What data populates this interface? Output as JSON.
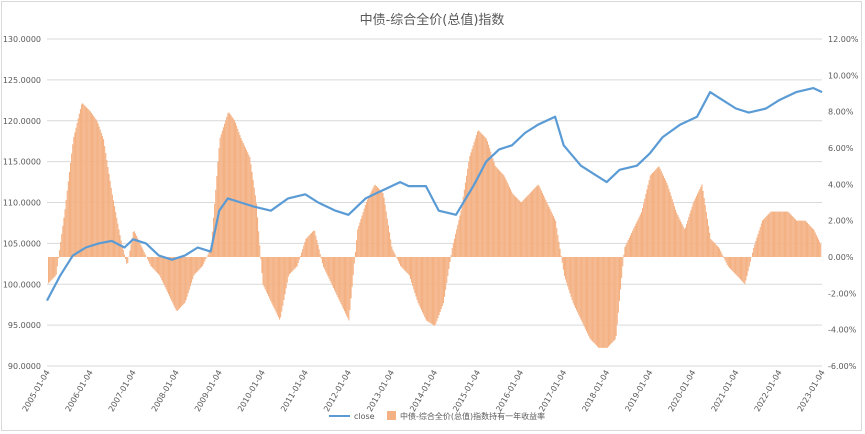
{
  "chart_data": {
    "type": "bar+line",
    "title": "中债-综合全价(总值)指数",
    "y_left": {
      "ticks": [
        "90.0000",
        "95.0000",
        "100.0000",
        "105.0000",
        "110.0000",
        "115.0000",
        "120.0000",
        "125.0000",
        "130.0000"
      ],
      "ylim": [
        90,
        130
      ]
    },
    "y_right": {
      "ticks": [
        "-6.00%",
        "-4.00%",
        "-2.00%",
        "0.00%",
        "2.00%",
        "4.00%",
        "6.00%",
        "8.00%",
        "10.00%",
        "12.00%"
      ],
      "ylim": [
        -6,
        12
      ]
    },
    "x_ticks": [
      "2005-01-04",
      "2006-01-04",
      "2007-01-04",
      "2008-01-04",
      "2009-01-04",
      "2010-01-04",
      "2011-01-04",
      "2012-01-04",
      "2013-01-04",
      "2014-01-04",
      "2015-01-04",
      "2016-01-04",
      "2017-01-04",
      "2018-01-04",
      "2019-01-04",
      "2020-01-04",
      "2021-01-04",
      "2022-01-04",
      "2023-01-04"
    ],
    "xlim": [
      2005.0,
      2023.0
    ],
    "grid": true,
    "legend_position": "bottom",
    "series": [
      {
        "name": "close",
        "axis": "left",
        "kind": "line",
        "color": "#5b9bd5",
        "x": [
          2005.0,
          2005.3,
          2005.6,
          2005.9,
          2006.2,
          2006.5,
          2006.8,
          2007.0,
          2007.3,
          2007.6,
          2007.9,
          2008.2,
          2008.5,
          2008.8,
          2009.0,
          2009.2,
          2009.5,
          2009.8,
          2010.2,
          2010.6,
          2011.0,
          2011.3,
          2011.7,
          2012.0,
          2012.4,
          2012.8,
          2013.2,
          2013.4,
          2013.8,
          2014.1,
          2014.5,
          2014.9,
          2015.2,
          2015.5,
          2015.8,
          2016.1,
          2016.4,
          2016.8,
          2017.0,
          2017.4,
          2017.7,
          2018.0,
          2018.3,
          2018.7,
          2019.0,
          2019.3,
          2019.7,
          2020.1,
          2020.4,
          2020.7,
          2021.0,
          2021.3,
          2021.7,
          2022.0,
          2022.4,
          2022.8,
          2023.0
        ],
        "y": [
          98.0,
          101.0,
          103.5,
          104.5,
          105.0,
          105.3,
          104.5,
          105.5,
          105.0,
          103.5,
          103.0,
          103.5,
          104.5,
          104.0,
          109.0,
          110.5,
          110.0,
          109.5,
          109.0,
          110.5,
          111.0,
          110.0,
          109.0,
          108.5,
          110.5,
          111.5,
          112.5,
          112.0,
          112.0,
          109.0,
          108.5,
          112.0,
          115.0,
          116.5,
          117.0,
          118.5,
          119.5,
          120.5,
          117.0,
          114.5,
          113.5,
          112.5,
          114.0,
          114.5,
          116.0,
          118.0,
          119.5,
          120.5,
          123.5,
          122.5,
          121.5,
          121.0,
          121.5,
          122.5,
          123.5,
          124.0,
          123.5
        ]
      },
      {
        "name": "中债-综合全价(总值)指数持有一年收益率",
        "axis": "right",
        "kind": "area",
        "color": "#f4b183",
        "x": [
          2005.0,
          2005.2,
          2005.4,
          2005.6,
          2005.8,
          2006.0,
          2006.15,
          2006.3,
          2006.5,
          2006.7,
          2006.85,
          2007.0,
          2007.2,
          2007.4,
          2007.6,
          2007.8,
          2008.0,
          2008.2,
          2008.4,
          2008.6,
          2008.8,
          2009.0,
          2009.2,
          2009.35,
          2009.5,
          2009.7,
          2009.85,
          2010.0,
          2010.2,
          2010.4,
          2010.6,
          2010.8,
          2011.0,
          2011.2,
          2011.4,
          2011.6,
          2011.8,
          2012.0,
          2012.2,
          2012.4,
          2012.6,
          2012.8,
          2013.0,
          2013.2,
          2013.4,
          2013.6,
          2013.8,
          2014.0,
          2014.2,
          2014.4,
          2014.6,
          2014.8,
          2015.0,
          2015.2,
          2015.4,
          2015.6,
          2015.8,
          2016.0,
          2016.2,
          2016.4,
          2016.6,
          2016.8,
          2017.0,
          2017.2,
          2017.4,
          2017.6,
          2017.8,
          2018.0,
          2018.2,
          2018.4,
          2018.6,
          2018.8,
          2019.0,
          2019.2,
          2019.4,
          2019.6,
          2019.8,
          2020.0,
          2020.2,
          2020.4,
          2020.6,
          2020.8,
          2021.0,
          2021.2,
          2021.4,
          2021.6,
          2021.8,
          2022.0,
          2022.2,
          2022.4,
          2022.6,
          2022.8,
          2023.0
        ],
        "y": [
          -1.5,
          -1.0,
          2.5,
          6.5,
          8.5,
          8.0,
          7.5,
          6.5,
          3.5,
          1.0,
          -0.5,
          1.5,
          0.5,
          -0.5,
          -1.0,
          -2.0,
          -3.0,
          -2.5,
          -1.0,
          -0.5,
          0.5,
          6.5,
          8.0,
          7.5,
          6.5,
          5.5,
          3.0,
          -1.5,
          -2.5,
          -3.5,
          -1.0,
          -0.5,
          1.0,
          1.5,
          -0.5,
          -1.5,
          -2.5,
          -3.5,
          1.5,
          3.0,
          4.0,
          3.5,
          0.5,
          -0.5,
          -1.0,
          -2.5,
          -3.5,
          -3.8,
          -2.5,
          0.5,
          2.5,
          5.5,
          7.0,
          6.5,
          5.0,
          4.5,
          3.5,
          3.0,
          3.5,
          4.0,
          3.0,
          2.0,
          -1.0,
          -2.5,
          -3.5,
          -4.5,
          -5.0,
          -5.0,
          -4.5,
          0.5,
          1.5,
          2.5,
          4.5,
          5.0,
          4.0,
          2.5,
          1.5,
          3.0,
          4.0,
          1.0,
          0.5,
          -0.5,
          -1.0,
          -1.5,
          0.5,
          2.0,
          2.5,
          2.5,
          2.5,
          2.0,
          2.0,
          1.5,
          0.5
        ]
      }
    ]
  }
}
